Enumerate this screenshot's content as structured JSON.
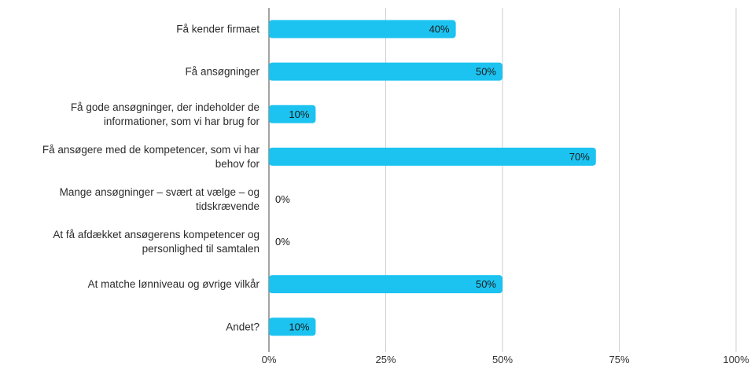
{
  "chart_data": {
    "type": "bar",
    "orientation": "horizontal",
    "categories": [
      [
        "Få kender firmaet"
      ],
      [
        "Få ansøgninger"
      ],
      [
        "Få gode ansøgninger, der indeholder de",
        "informationer, som vi har brug for"
      ],
      [
        "Få ansøgere med de kompetencer, som vi har",
        "behov for"
      ],
      [
        "Mange ansøgninger – svært at vælge – og",
        "tidskrævende"
      ],
      [
        "At få afdækket ansøgerens kompetencer og",
        "personlighed til samtalen"
      ],
      [
        "At matche lønniveau og øvrige vilkår"
      ],
      [
        "Andet?"
      ]
    ],
    "values": [
      40,
      50,
      10,
      70,
      0,
      0,
      50,
      10
    ],
    "value_labels": [
      "40%",
      "50%",
      "10%",
      "70%",
      "0%",
      "0%",
      "50%",
      "10%"
    ],
    "xlim": [
      0,
      100
    ],
    "x_ticks": [
      0,
      25,
      50,
      75,
      100
    ],
    "x_tick_labels": [
      "0%",
      "25%",
      "50%",
      "75%",
      "100%"
    ],
    "grid": true,
    "bar_color": "#1cc3f0",
    "grid_color": "#cfcfcf",
    "title": "",
    "xlabel": "",
    "ylabel": ""
  }
}
